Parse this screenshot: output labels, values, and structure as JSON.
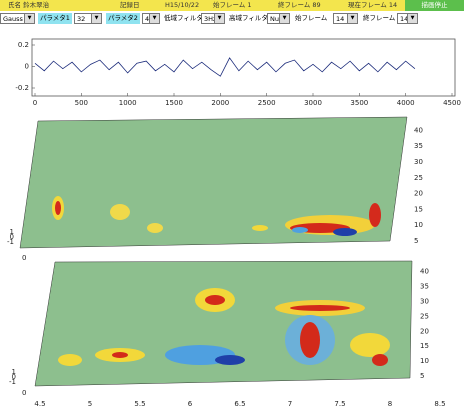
{
  "header": {
    "name": "氏名 鈴木翠治",
    "date_label": "記録日",
    "date": "H15/10/22",
    "start_frame": "始フレーム 1",
    "end_frame": "終フレーム 89",
    "current_frame": "現在フレーム 14",
    "stop_button": "描画停止"
  },
  "controls": [
    {
      "kind": "select",
      "text": "Gauss"
    },
    {
      "kind": "label",
      "text": "パラメタ1"
    },
    {
      "kind": "select",
      "text": "32"
    },
    {
      "kind": "label",
      "text": "パラメタ2"
    },
    {
      "kind": "select",
      "text": "4"
    },
    {
      "kind": "plain",
      "text": "低域フィルタ"
    },
    {
      "kind": "select",
      "text": "3Hz"
    },
    {
      "kind": "plain",
      "text": "高域フィルタ"
    },
    {
      "kind": "select",
      "text": "Null"
    },
    {
      "kind": "plain",
      "text": "始フレーム"
    },
    {
      "kind": "select",
      "text": "14"
    },
    {
      "kind": "plain",
      "text": "終フレーム"
    },
    {
      "kind": "select",
      "text": "14"
    }
  ],
  "chart_data": {
    "type": "line",
    "color": "#1a2a7a",
    "x": [
      0,
      100,
      200,
      300,
      400,
      500,
      600,
      700,
      800,
      900,
      1000,
      1100,
      1200,
      1300,
      1400,
      1500,
      1600,
      1700,
      1800,
      1900,
      2000,
      2100,
      2200,
      2300,
      2400,
      2500,
      2600,
      2700,
      2800,
      2900,
      3000,
      3100,
      3200,
      3300,
      3400,
      3500,
      3600,
      3700,
      3800,
      3900,
      4000,
      4100
    ],
    "values": [
      0.03,
      -0.04,
      0.05,
      -0.02,
      0.04,
      -0.05,
      0.02,
      0.06,
      -0.03,
      0.04,
      -0.06,
      0.03,
      0.05,
      -0.04,
      0.02,
      -0.05,
      0.06,
      -0.02,
      0.04,
      -0.03,
      -0.09,
      0.08,
      -0.04,
      0.05,
      -0.03,
      0.04,
      -0.05,
      0.03,
      0.06,
      -0.04,
      0.02,
      -0.05,
      0.04,
      -0.02,
      0.05,
      -0.04,
      0.03,
      -0.05,
      0.04,
      -0.03,
      0.05,
      -0.02
    ],
    "xlim": [
      0,
      4500
    ],
    "ylim": [
      -0.2,
      0.2
    ],
    "xticks": [
      0,
      500,
      1000,
      1500,
      2000,
      2500,
      3000,
      3500,
      4000,
      4500
    ],
    "yticks": [
      -0.2,
      0,
      0.2
    ]
  },
  "surface_top": {
    "zticks": [
      5,
      10,
      15,
      20,
      25,
      30,
      35,
      40
    ],
    "left_ticks": [
      1,
      0,
      -1
    ],
    "corner": 0
  },
  "surface_bottom": {
    "zticks": [
      5,
      10,
      15,
      20,
      25,
      30,
      35,
      40
    ],
    "left_ticks": [
      1,
      0,
      -1
    ],
    "corner": 0,
    "xticks": [
      4.5,
      5,
      5.5,
      6,
      6.5,
      7,
      7.5,
      8,
      8.5
    ]
  }
}
